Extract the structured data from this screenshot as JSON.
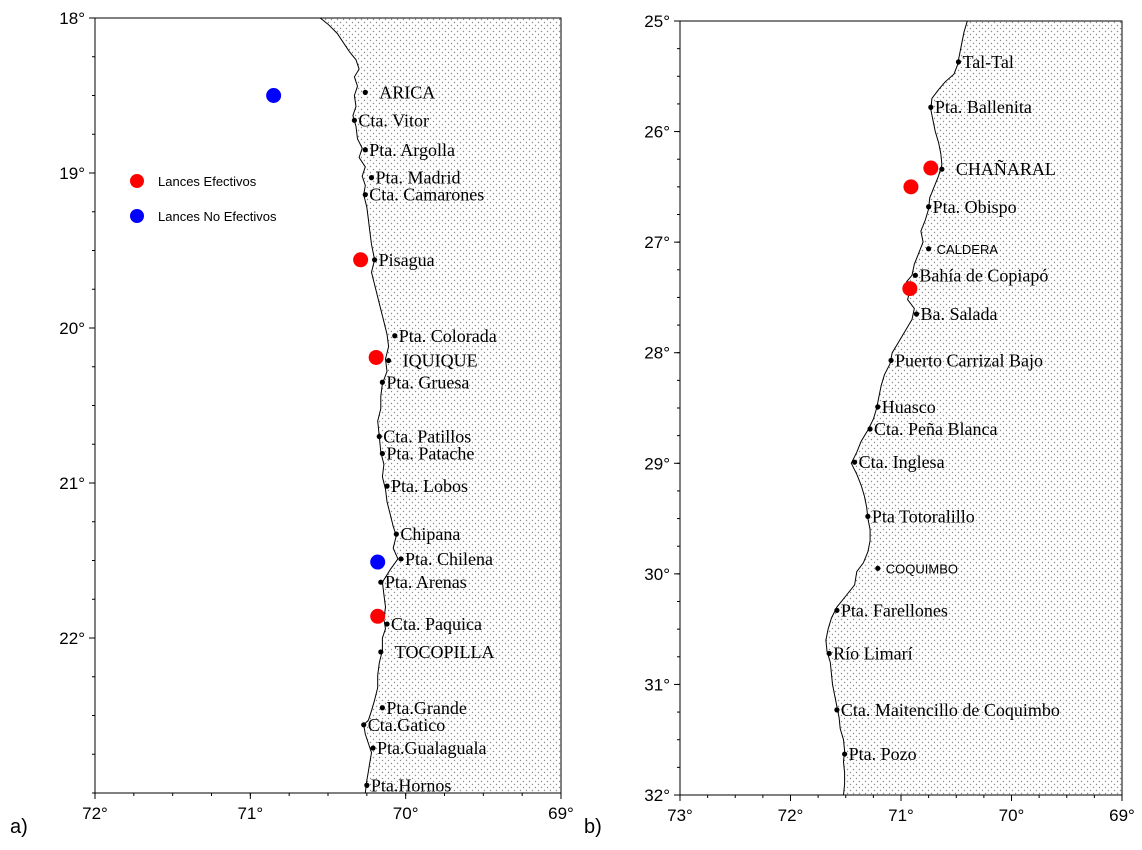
{
  "panels": [
    {
      "id": "a",
      "tag": "a)",
      "lon_range": [
        72,
        69
      ],
      "lat_range": [
        18,
        23
      ],
      "x_ticks": [
        "72°",
        "71°",
        "70°",
        "69°"
      ],
      "y_ticks": [
        "18°",
        "19°",
        "20°",
        "21°",
        "22°"
      ],
      "y_tick_values": [
        18,
        19,
        20,
        21,
        22
      ],
      "legend": [
        {
          "label": "Lances Efectivos",
          "color": "#ff0000"
        },
        {
          "label": "Lances No Efectivos",
          "color": "#0000ff"
        }
      ],
      "places": [
        {
          "name": "ARICA",
          "lon": 70.26,
          "lat": 18.48,
          "style": "caps"
        },
        {
          "name": "Cta. Vitor",
          "lon": 70.33,
          "lat": 18.66
        },
        {
          "name": "Pta. Argolla",
          "lon": 70.26,
          "lat": 18.85
        },
        {
          "name": "Pta. Madrid",
          "lon": 70.22,
          "lat": 19.03
        },
        {
          "name": "Cta. Camarones",
          "lon": 70.26,
          "lat": 19.14
        },
        {
          "name": "Pisagua",
          "lon": 70.2,
          "lat": 19.56
        },
        {
          "name": "Pta. Colorada",
          "lon": 70.07,
          "lat": 20.05
        },
        {
          "name": "IQUIQUE",
          "lon": 70.11,
          "lat": 20.21,
          "style": "caps"
        },
        {
          "name": "Pta. Gruesa",
          "lon": 70.15,
          "lat": 20.35
        },
        {
          "name": "Cta. Patillos",
          "lon": 70.17,
          "lat": 20.7
        },
        {
          "name": "Pta. Patache",
          "lon": 70.15,
          "lat": 20.81
        },
        {
          "name": "Pta. Lobos",
          "lon": 70.12,
          "lat": 21.02
        },
        {
          "name": "Chipana",
          "lon": 70.06,
          "lat": 21.33
        },
        {
          "name": "Pta. Chilena",
          "lon": 70.03,
          "lat": 21.49
        },
        {
          "name": "Pta. Arenas",
          "lon": 70.16,
          "lat": 21.64
        },
        {
          "name": "Cta. Paquica",
          "lon": 70.12,
          "lat": 21.91
        },
        {
          "name": "TOCOPILLA",
          "lon": 70.16,
          "lat": 22.09,
          "style": "caps"
        },
        {
          "name": "Pta.Grande",
          "lon": 70.15,
          "lat": 22.45
        },
        {
          "name": "Cta.Gatico",
          "lon": 70.27,
          "lat": 22.56
        },
        {
          "name": "Pta.Gualaguala",
          "lon": 70.21,
          "lat": 22.71
        },
        {
          "name": "Pta.Hornos",
          "lon": 70.25,
          "lat": 22.95
        }
      ],
      "sets": [
        {
          "lon": 70.85,
          "lat": 18.5,
          "type": "no_efectivo"
        },
        {
          "lon": 70.29,
          "lat": 19.56,
          "type": "efectivo"
        },
        {
          "lon": 70.19,
          "lat": 20.19,
          "type": "efectivo"
        },
        {
          "lon": 70.18,
          "lat": 21.51,
          "type": "no_efectivo"
        },
        {
          "lon": 70.18,
          "lat": 21.86,
          "type": "efectivo"
        }
      ]
    },
    {
      "id": "b",
      "tag": "b)",
      "lon_range": [
        73,
        69
      ],
      "lat_range": [
        25,
        32
      ],
      "x_ticks": [
        "73°",
        "72°",
        "71°",
        "70°",
        "69°"
      ],
      "y_ticks": [
        "25°",
        "26°",
        "27°",
        "28°",
        "29°",
        "30°",
        "31°",
        "32°"
      ],
      "y_tick_values": [
        25,
        26,
        27,
        28,
        29,
        30,
        31,
        32
      ],
      "places": [
        {
          "name": "Tal-Tal",
          "lon": 70.48,
          "lat": 25.37
        },
        {
          "name": "Pta. Ballenita",
          "lon": 70.73,
          "lat": 25.78
        },
        {
          "name": "CHAÑARAL",
          "lon": 70.63,
          "lat": 26.34,
          "style": "caps"
        },
        {
          "name": "Pta. Obispo",
          "lon": 70.75,
          "lat": 26.68
        },
        {
          "name": "CALDERA",
          "lon": 70.75,
          "lat": 27.06,
          "style": "small"
        },
        {
          "name": "Bahía de Copiapó",
          "lon": 70.87,
          "lat": 27.3
        },
        {
          "name": "Ba. Salada",
          "lon": 70.86,
          "lat": 27.65
        },
        {
          "name": "Puerto Carrizal Bajo",
          "lon": 71.09,
          "lat": 28.07
        },
        {
          "name": "Huasco",
          "lon": 71.21,
          "lat": 28.49
        },
        {
          "name": "Cta. Peña Blanca",
          "lon": 71.28,
          "lat": 28.69
        },
        {
          "name": "Cta. Inglesa",
          "lon": 71.42,
          "lat": 28.99
        },
        {
          "name": "Pta Totoralillo",
          "lon": 71.3,
          "lat": 29.48
        },
        {
          "name": "COQUIMBO",
          "lon": 71.21,
          "lat": 29.95,
          "style": "small"
        },
        {
          "name": "Pta. Farellones",
          "lon": 71.58,
          "lat": 30.33
        },
        {
          "name": "Río Limarí",
          "lon": 71.65,
          "lat": 30.72
        },
        {
          "name": "Cta. Maitencillo de Coquimbo",
          "lon": 71.58,
          "lat": 31.23
        },
        {
          "name": "Pta. Pozo",
          "lon": 71.51,
          "lat": 31.63
        }
      ],
      "sets": [
        {
          "lon": 70.73,
          "lat": 26.33,
          "type": "efectivo"
        },
        {
          "lon": 70.91,
          "lat": 26.5,
          "type": "efectivo"
        },
        {
          "lon": 70.92,
          "lat": 27.42,
          "type": "efectivo"
        }
      ]
    }
  ],
  "colors": {
    "efectivo": "#ff0000",
    "no_efectivo": "#0000ff",
    "land_dot": "#888888"
  }
}
